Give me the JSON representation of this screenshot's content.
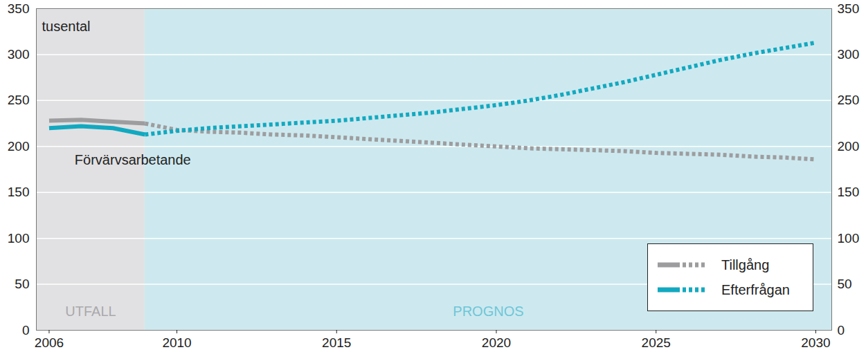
{
  "chart_data": {
    "type": "line",
    "ylabel": "tusental",
    "x": [
      2006,
      2007,
      2008,
      2009,
      2010,
      2011,
      2012,
      2013,
      2014,
      2015,
      2016,
      2017,
      2018,
      2019,
      2020,
      2021,
      2022,
      2023,
      2024,
      2025,
      2026,
      2027,
      2028,
      2029,
      2030
    ],
    "series": [
      {
        "name": "Tillgång",
        "color": "#9d9d9f",
        "line_style": "solid",
        "values": [
          228,
          229,
          227,
          225,
          null,
          null,
          null,
          null,
          null,
          null,
          null,
          null,
          null,
          null,
          null,
          null,
          null,
          null,
          null,
          null,
          null,
          null,
          null,
          null,
          null
        ]
      },
      {
        "name": "Tillgång",
        "color": "#9d9d9f",
        "line_style": "dotted",
        "values": [
          null,
          null,
          null,
          225,
          218,
          216,
          215,
          213,
          212,
          210,
          208,
          206,
          204,
          202,
          200,
          198,
          197,
          196,
          195,
          193,
          192,
          191,
          189,
          188,
          186
        ]
      },
      {
        "name": "Efterfrågan",
        "color": "#12a9c0",
        "line_style": "solid",
        "values": [
          220,
          222,
          220,
          213,
          null,
          null,
          null,
          null,
          null,
          null,
          null,
          null,
          null,
          null,
          null,
          null,
          null,
          null,
          null,
          null,
          null,
          null,
          null,
          null,
          null
        ]
      },
      {
        "name": "Efterfrågan",
        "color": "#12a9c0",
        "line_style": "dotted",
        "values": [
          null,
          null,
          null,
          213,
          217,
          220,
          222,
          224,
          226,
          228,
          231,
          234,
          237,
          241,
          245,
          250,
          256,
          263,
          270,
          278,
          286,
          294,
          301,
          307,
          313
        ]
      }
    ],
    "xlim": [
      2005.6,
      2030.5
    ],
    "xticks": [
      2006,
      2010,
      2015,
      2020,
      2025,
      2030
    ],
    "ylim": [
      0,
      350
    ],
    "yticks": [
      0,
      50,
      100,
      150,
      200,
      250,
      300,
      350
    ],
    "y2lim": [
      0,
      350
    ],
    "y2ticks": [
      0,
      50,
      100,
      150,
      200,
      250,
      300,
      350
    ],
    "grid": true,
    "legend": "bottom-right",
    "annotations": [
      {
        "text": "Förvärvsarbetande",
        "x": 2006.8,
        "y": 185
      },
      {
        "text": "UTFALL",
        "x": [
          2005.6,
          2009
        ],
        "y": 20,
        "color": "#e1e1e3"
      },
      {
        "text": "PROGNOS",
        "x": [
          2009,
          2030.5
        ],
        "y": 20,
        "color": "#cde9ef"
      }
    ]
  }
}
